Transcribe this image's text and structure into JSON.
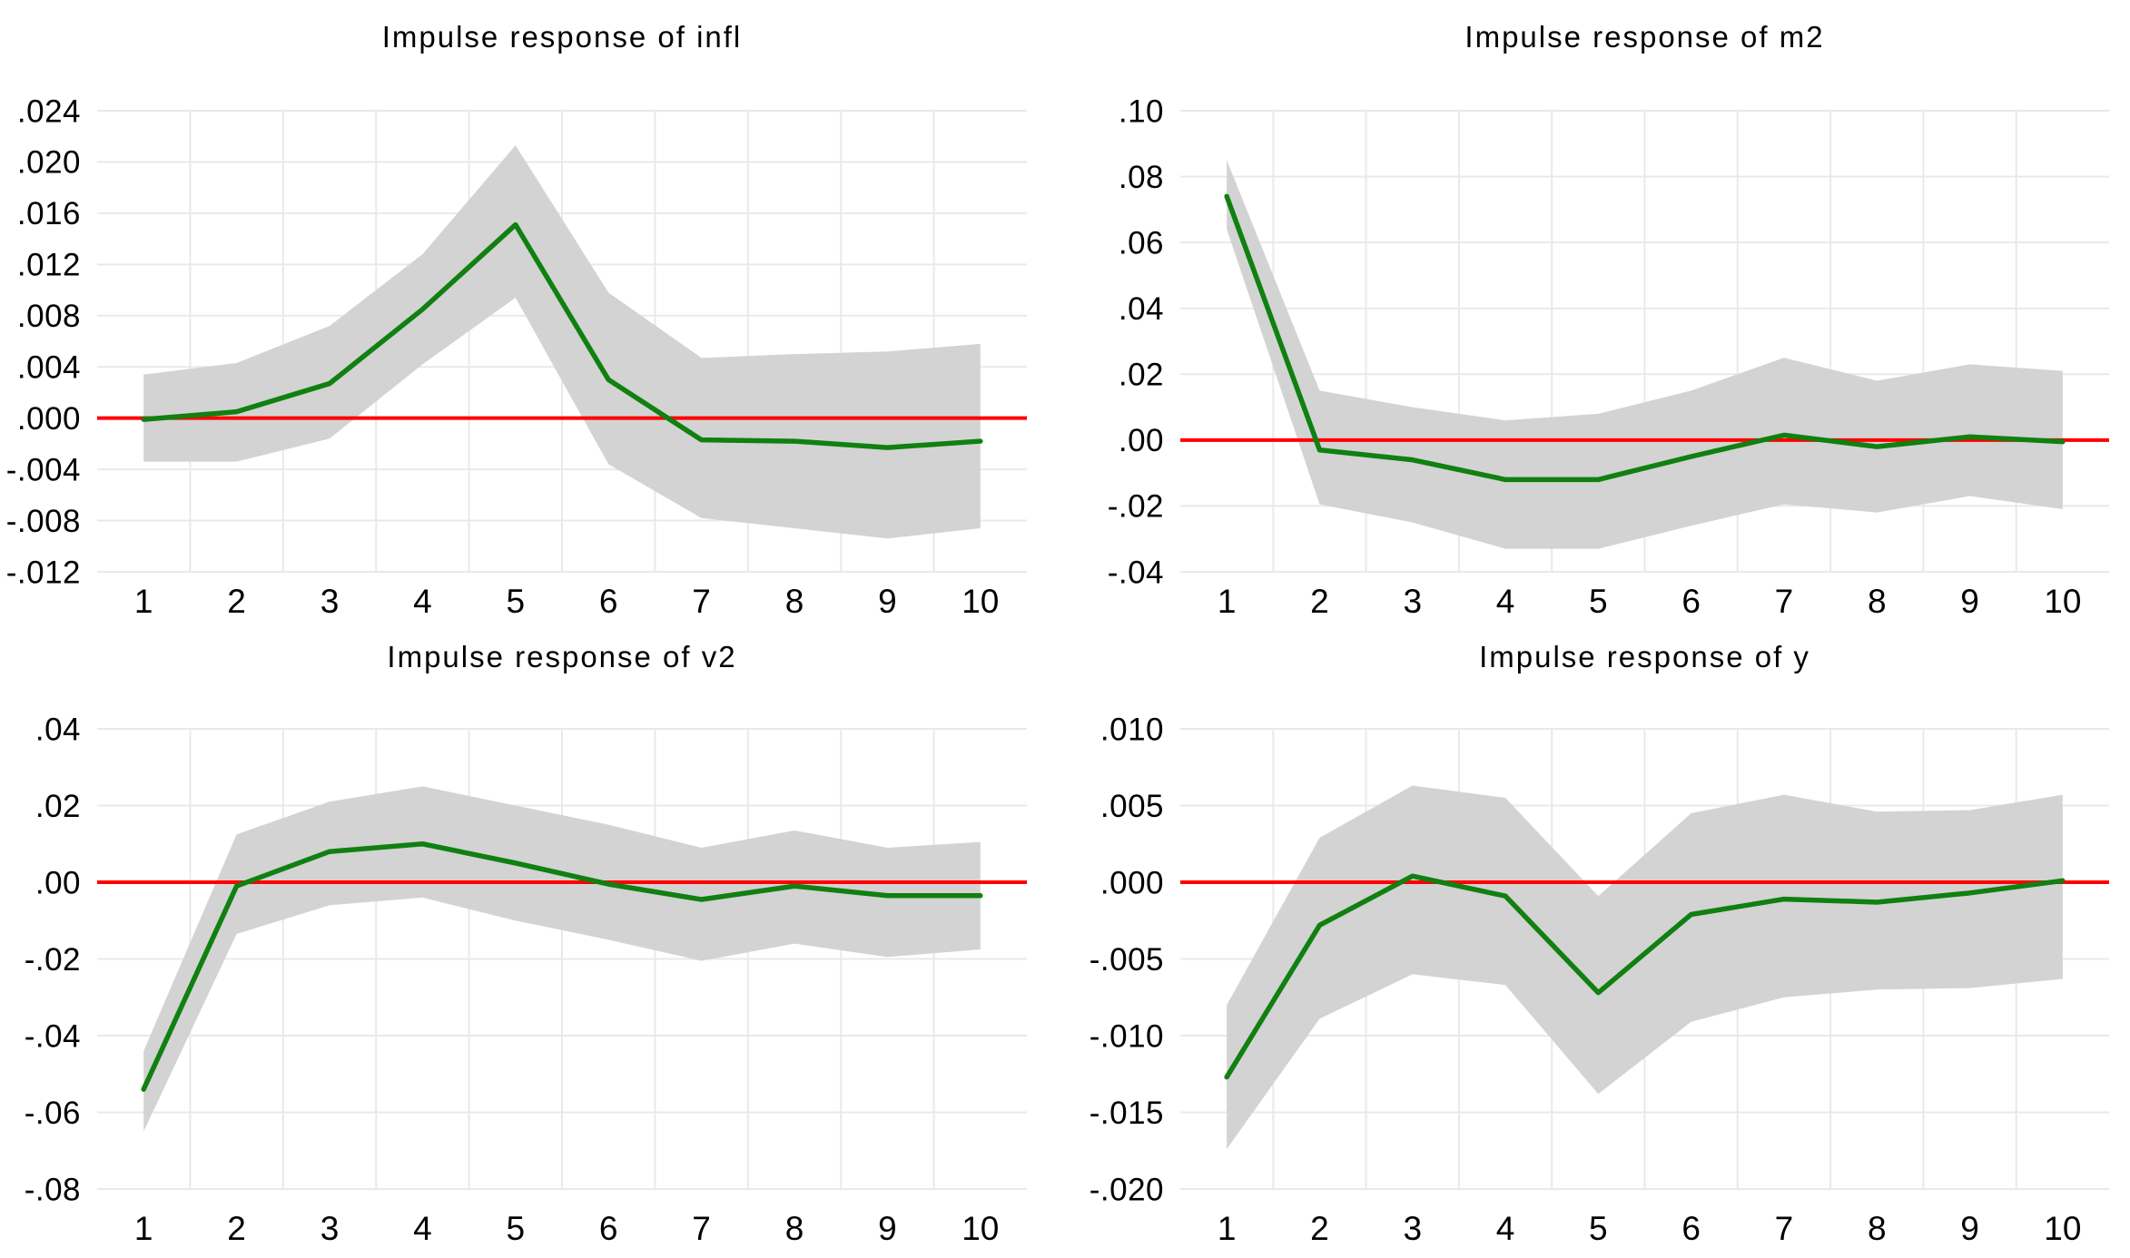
{
  "figure": {
    "background": "#ffffff",
    "description": "2x2 grid of VAR impulse response function charts with green response lines, gray confidence bands and red zero lines"
  },
  "colors": {
    "response_line": "#108010",
    "zero_line": "#ff0000",
    "confidence_band": "#d3d3d3",
    "gridline": "#e9e9e9",
    "text": "#000000"
  },
  "chart_data": [
    {
      "type": "line",
      "title": "Impulse response of infl",
      "x": [
        1,
        2,
        3,
        4,
        5,
        6,
        7,
        8,
        9,
        10
      ],
      "x_tick_labels": [
        "1",
        "2",
        "3",
        "4",
        "5",
        "6",
        "7",
        "8",
        "9",
        "10"
      ],
      "xlim": [
        0.5,
        10.5
      ],
      "ylim": [
        -0.012,
        0.024
      ],
      "grid": "on",
      "legend": "none",
      "zero_line": 0,
      "y_ticks": [
        {
          "label": ".024",
          "value": 0.024
        },
        {
          "label": ".020",
          "value": 0.02
        },
        {
          "label": ".016",
          "value": 0.016
        },
        {
          "label": ".012",
          "value": 0.012
        },
        {
          "label": ".008",
          "value": 0.008
        },
        {
          "label": ".004",
          "value": 0.004
        },
        {
          "label": ".000",
          "value": 0.0
        },
        {
          "label": "-.004",
          "value": -0.004
        },
        {
          "label": "-.008",
          "value": -0.008
        },
        {
          "label": "-.012",
          "value": -0.012
        }
      ],
      "series": [
        {
          "name": "impulse-response",
          "values": [
            -0.0001,
            0.0005,
            0.0027,
            0.0085,
            0.0151,
            0.003,
            -0.0017,
            -0.0018,
            -0.0023,
            -0.0018
          ]
        },
        {
          "name": "upper-band",
          "values": [
            0.0034,
            0.0043,
            0.0072,
            0.0128,
            0.0213,
            0.0098,
            0.0047,
            0.005,
            0.0052,
            0.0058
          ]
        },
        {
          "name": "lower-band",
          "values": [
            -0.0034,
            -0.0034,
            -0.0016,
            0.0042,
            0.0094,
            -0.0036,
            -0.0078,
            -0.0086,
            -0.0094,
            -0.0086
          ]
        }
      ]
    },
    {
      "type": "line",
      "title": "Impulse response of m2",
      "x": [
        1,
        2,
        3,
        4,
        5,
        6,
        7,
        8,
        9,
        10
      ],
      "x_tick_labels": [
        "1",
        "2",
        "3",
        "4",
        "5",
        "6",
        "7",
        "8",
        "9",
        "10"
      ],
      "xlim": [
        0.5,
        10.5
      ],
      "ylim": [
        -0.04,
        0.1
      ],
      "grid": "on",
      "legend": "none",
      "zero_line": 0,
      "y_ticks": [
        {
          "label": ".10",
          "value": 0.1
        },
        {
          "label": ".08",
          "value": 0.08
        },
        {
          "label": ".06",
          "value": 0.06
        },
        {
          "label": ".04",
          "value": 0.04
        },
        {
          "label": ".02",
          "value": 0.02
        },
        {
          "label": ".00",
          "value": 0.0
        },
        {
          "label": "-.02",
          "value": -0.02
        },
        {
          "label": "-.04",
          "value": -0.04
        }
      ],
      "series": [
        {
          "name": "impulse-response",
          "values": [
            0.074,
            -0.003,
            -0.006,
            -0.012,
            -0.012,
            -0.005,
            0.0015,
            -0.002,
            0.001,
            -0.0005
          ]
        },
        {
          "name": "upper-band",
          "values": [
            0.085,
            0.015,
            0.01,
            0.006,
            0.008,
            0.015,
            0.025,
            0.018,
            0.023,
            0.021
          ]
        },
        {
          "name": "lower-band",
          "values": [
            0.064,
            -0.0195,
            -0.025,
            -0.033,
            -0.033,
            -0.026,
            -0.0195,
            -0.022,
            -0.017,
            -0.021
          ]
        }
      ]
    },
    {
      "type": "line",
      "title": "Impulse response of v2",
      "x": [
        1,
        2,
        3,
        4,
        5,
        6,
        7,
        8,
        9,
        10
      ],
      "x_tick_labels": [
        "1",
        "2",
        "3",
        "4",
        "5",
        "6",
        "7",
        "8",
        "9",
        "10"
      ],
      "xlim": [
        0.5,
        10.5
      ],
      "ylim": [
        -0.08,
        0.04
      ],
      "grid": "on",
      "legend": "none",
      "zero_line": 0,
      "y_ticks": [
        {
          "label": ".04",
          "value": 0.04
        },
        {
          "label": ".02",
          "value": 0.02
        },
        {
          "label": ".00",
          "value": 0.0
        },
        {
          "label": "-.02",
          "value": -0.02
        },
        {
          "label": "-.04",
          "value": -0.04
        },
        {
          "label": "-.06",
          "value": -0.06
        },
        {
          "label": "-.08",
          "value": -0.08
        }
      ],
      "series": [
        {
          "name": "impulse-response",
          "values": [
            -0.054,
            -0.001,
            0.008,
            0.01,
            0.005,
            -0.0005,
            -0.0045,
            -0.001,
            -0.0035,
            -0.0035
          ]
        },
        {
          "name": "upper-band",
          "values": [
            -0.044,
            0.0125,
            0.021,
            0.025,
            0.02,
            0.015,
            0.009,
            0.0135,
            0.009,
            0.0105
          ]
        },
        {
          "name": "lower-band",
          "values": [
            -0.065,
            -0.0135,
            -0.006,
            -0.004,
            -0.01,
            -0.015,
            -0.0205,
            -0.016,
            -0.0195,
            -0.0175
          ]
        }
      ]
    },
    {
      "type": "line",
      "title": "Impulse response of y",
      "x": [
        1,
        2,
        3,
        4,
        5,
        6,
        7,
        8,
        9,
        10
      ],
      "x_tick_labels": [
        "1",
        "2",
        "3",
        "4",
        "5",
        "6",
        "7",
        "8",
        "9",
        "10"
      ],
      "xlim": [
        0.5,
        10.5
      ],
      "ylim": [
        -0.02,
        0.01
      ],
      "grid": "on",
      "legend": "none",
      "zero_line": 0,
      "y_ticks": [
        {
          "label": ".010",
          "value": 0.01
        },
        {
          "label": ".005",
          "value": 0.005
        },
        {
          "label": ".000",
          "value": 0.0
        },
        {
          "label": "-.005",
          "value": -0.005
        },
        {
          "label": "-.010",
          "value": -0.01
        },
        {
          "label": "-.015",
          "value": -0.015
        },
        {
          "label": "-.020",
          "value": -0.02
        }
      ],
      "series": [
        {
          "name": "impulse-response",
          "values": [
            -0.0127,
            -0.0028,
            0.0004,
            -0.0009,
            -0.0072,
            -0.0021,
            -0.0011,
            -0.0013,
            -0.0007,
            0.0001
          ]
        },
        {
          "name": "upper-band",
          "values": [
            -0.008,
            0.0029,
            0.0063,
            0.0055,
            -0.0009,
            0.0045,
            0.0057,
            0.0046,
            0.0047,
            0.0057
          ]
        },
        {
          "name": "lower-band",
          "values": [
            -0.0174,
            -0.0089,
            -0.006,
            -0.0067,
            -0.0138,
            -0.0091,
            -0.0075,
            -0.007,
            -0.0069,
            -0.0063
          ]
        }
      ]
    }
  ]
}
